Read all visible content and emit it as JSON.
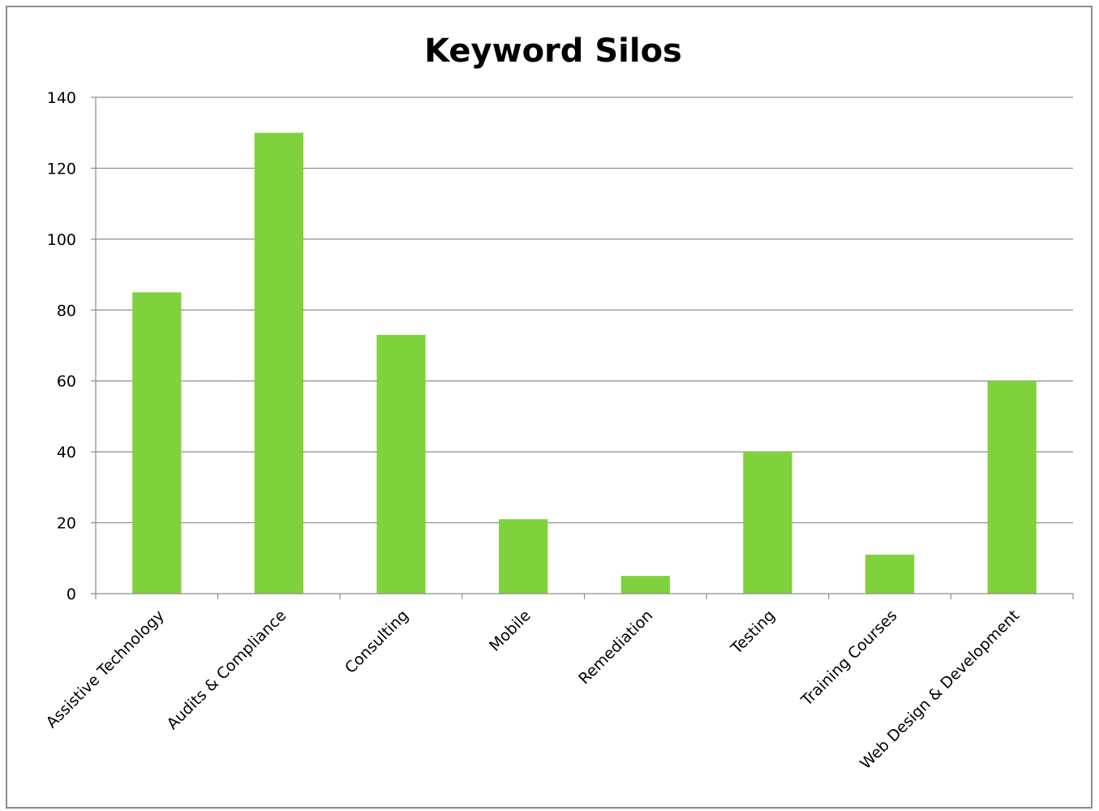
{
  "chart_data": {
    "type": "bar",
    "title": "Keyword Silos",
    "categories": [
      "Assistive Technology",
      "Audits & Compliance",
      "Consulting",
      "Mobile",
      "Remediation",
      "Testing",
      "Training Courses",
      "Web Design & Development"
    ],
    "series": [
      {
        "values": [
          85,
          130,
          73,
          21,
          5,
          40,
          11,
          60
        ],
        "color": "#80d23c"
      }
    ],
    "ylim": [
      0,
      140
    ],
    "yticks": [
      "0",
      "20",
      "40",
      "60",
      "80",
      "100",
      "120",
      "140"
    ],
    "grid": true,
    "legend": "none",
    "colors": {
      "bar": "#80d23c",
      "gridline": "#8c8c8c",
      "axis": "#8c8c8c",
      "frame": "#8c8c8c"
    }
  }
}
